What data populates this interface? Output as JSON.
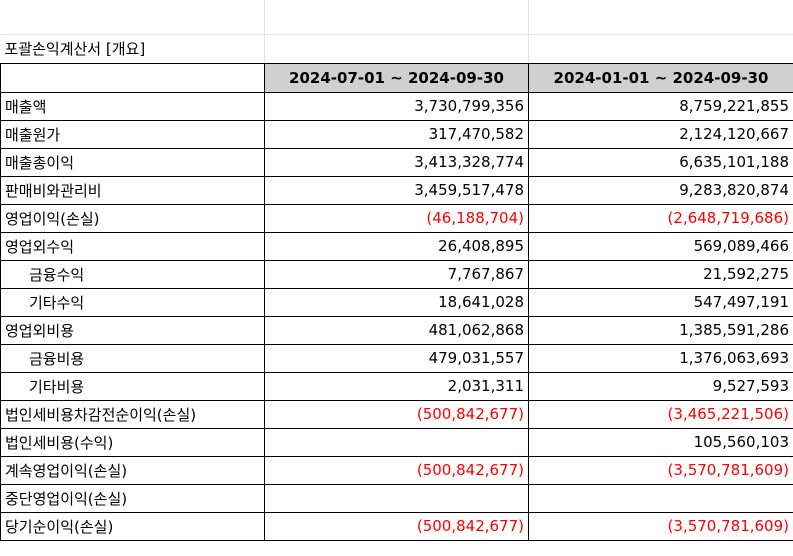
{
  "title": "포괄손익계산서 [개요]",
  "columns": [
    "2024-07-01 ~ 2024-09-30",
    "2024-01-01 ~ 2024-09-30"
  ],
  "rows": [
    {
      "label": "매출액",
      "v1": "3,730,799,356",
      "v2": "8,759,221,855"
    },
    {
      "label": "매출원가",
      "v1": "317,470,582",
      "v2": "2,124,120,667"
    },
    {
      "label": "매출총이익",
      "v1": "3,413,328,774",
      "v2": "6,635,101,188"
    },
    {
      "label": "판매비와관리비",
      "v1": "3,459,517,478",
      "v2": "9,283,820,874"
    },
    {
      "label": "영업이익(손실)",
      "v1": "(46,188,704)",
      "v2": "(2,648,719,686)"
    },
    {
      "label": "영업외수익",
      "v1": "26,408,895",
      "v2": "569,089,466"
    },
    {
      "label": "금융수익",
      "v1": "7,767,867",
      "v2": "21,592,275"
    },
    {
      "label": "기타수익",
      "v1": "18,641,028",
      "v2": "547,497,191"
    },
    {
      "label": "영업외비용",
      "v1": "481,062,868",
      "v2": "1,385,591,286"
    },
    {
      "label": "금융비용",
      "v1": "479,031,557",
      "v2": "1,376,063,693"
    },
    {
      "label": "기타비용",
      "v1": "2,031,311",
      "v2": "9,527,593"
    },
    {
      "label": "법인세비용차감전순이익(손실)",
      "v1": "(500,842,677)",
      "v2": "(3,465,221,506)"
    },
    {
      "label": "법인세비용(수익)",
      "v1": "",
      "v2": "105,560,103"
    },
    {
      "label": "계속영업이익(손실)",
      "v1": "(500,842,677)",
      "v2": "(3,570,781,609)"
    },
    {
      "label": "중단영업이익(손실)",
      "v1": "",
      "v2": ""
    },
    {
      "label": "당기순이익(손실)",
      "v1": "(500,842,677)",
      "v2": "(3,570,781,609)"
    }
  ],
  "colors": {
    "negative": "#ff0000",
    "header_bg": "#d0d0d0"
  }
}
